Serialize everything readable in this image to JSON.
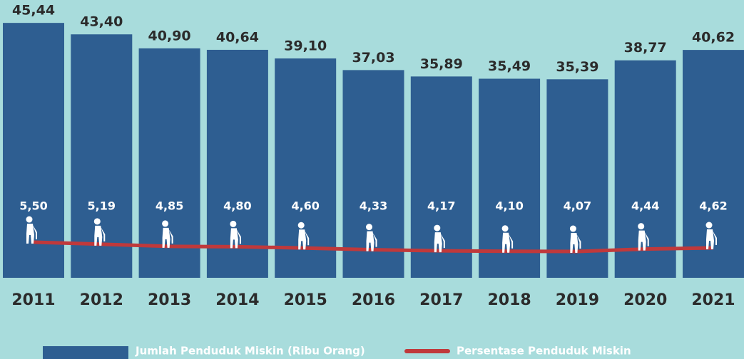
{
  "chart_data": {
    "type": "bar_line",
    "categories": [
      "2011",
      "2012",
      "2013",
      "2014",
      "2015",
      "2016",
      "2017",
      "2018",
      "2019",
      "2020",
      "2021"
    ],
    "series": [
      {
        "name": "Jumlah Penduduk Miskin (Ribu Orang)",
        "type": "bar",
        "color": "#2e5e91",
        "values": [
          45.44,
          43.4,
          40.9,
          40.64,
          39.1,
          37.03,
          35.89,
          35.49,
          35.39,
          38.77,
          40.62
        ],
        "value_labels": [
          "45,44",
          "43,40",
          "40,90",
          "40,64",
          "39,10",
          "37,03",
          "35,89",
          "35,49",
          "35,39",
          "38,77",
          "40,62"
        ]
      },
      {
        "name": "Persentase Penduduk Miskin",
        "type": "line",
        "axis": "y2",
        "color": "#c0393b",
        "values": [
          5.5,
          5.19,
          4.85,
          4.8,
          4.6,
          4.33,
          4.17,
          4.1,
          4.07,
          4.44,
          4.62
        ],
        "value_labels": [
          "5,50",
          "5,19",
          "4,85",
          "4,80",
          "4,60",
          "4,33",
          "4,17",
          "4,10",
          "4,07",
          "4,44",
          "4,62"
        ]
      }
    ],
    "ylim": [
      0,
      48
    ],
    "y2lim": [
      0,
      41.6
    ]
  }
}
